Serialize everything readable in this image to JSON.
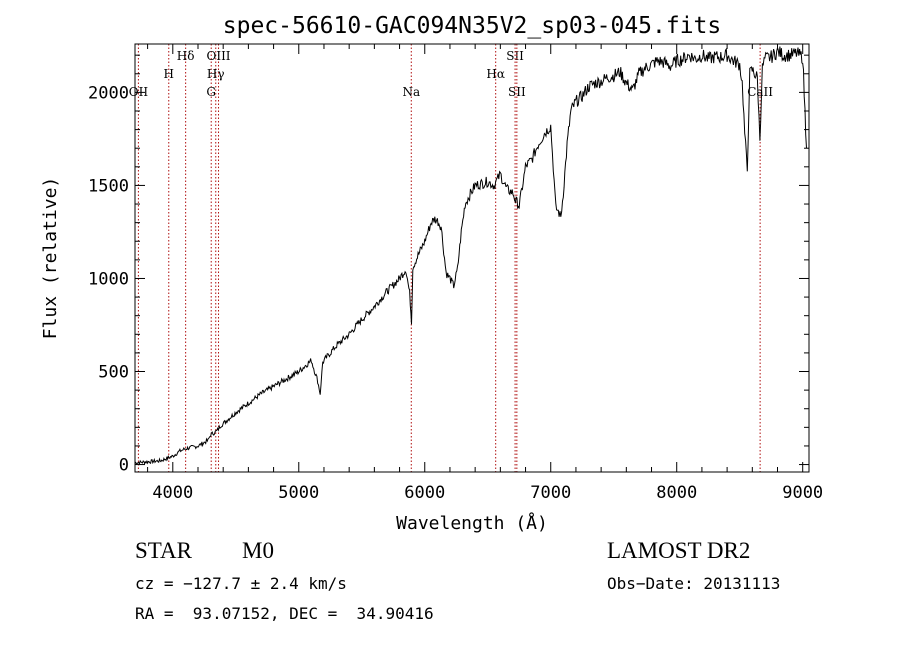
{
  "chart_data": {
    "type": "line",
    "title": "spec-56610-GAC094N35V2_sp03-045.fits",
    "xlabel": "Wavelength (Å)",
    "ylabel": "Flux (relative)",
    "xlim": [
      3700,
      9050
    ],
    "ylim": [
      -40,
      2260
    ],
    "xticks": [
      4000,
      5000,
      6000,
      7000,
      8000,
      9000
    ],
    "yticks": [
      0,
      500,
      1000,
      1500,
      2000
    ],
    "grid": false,
    "series": [
      {
        "x": [
          3700,
          3800,
          3900,
          4000,
          4050,
          4100,
          4200,
          4280,
          4300,
          4350,
          4380,
          4400,
          4500,
          4600,
          4700,
          4800,
          4900,
          5000,
          5100,
          5150,
          5170,
          5190,
          5250,
          5300,
          5400,
          5500,
          5600,
          5700,
          5800,
          5850,
          5880,
          5895,
          5905,
          5930,
          6000,
          6050,
          6080,
          6100,
          6130,
          6150,
          6170,
          6200,
          6230,
          6260,
          6290,
          6320,
          6350,
          6400,
          6450,
          6500,
          6550,
          6600,
          6650,
          6700,
          6720,
          6750,
          6800,
          6850,
          6900,
          6950,
          7000,
          7020,
          7040,
          7060,
          7080,
          7100,
          7130,
          7160,
          7200,
          7250,
          7300,
          7350,
          7400,
          7450,
          7500,
          7550,
          7600,
          7650,
          7700,
          7750,
          7800,
          7850,
          7900,
          7950,
          8000,
          8050,
          8100,
          8150,
          8200,
          8250,
          8300,
          8350,
          8400,
          8450,
          8500,
          8520,
          8540,
          8560,
          8580,
          8600,
          8640,
          8660,
          8680,
          8700,
          8750,
          8800,
          8850,
          8900,
          8950,
          9000,
          9030
        ],
        "y": [
          10,
          15,
          20,
          45,
          70,
          85,
          100,
          130,
          160,
          180,
          210,
          220,
          280,
          330,
          380,
          420,
          460,
          500,
          560,
          450,
          380,
          550,
          600,
          640,
          700,
          780,
          850,
          930,
          1000,
          1050,
          920,
          770,
          1060,
          1100,
          1200,
          1300,
          1320,
          1310,
          1280,
          1150,
          1030,
          1000,
          960,
          1050,
          1250,
          1400,
          1440,
          1500,
          1510,
          1520,
          1500,
          1560,
          1480,
          1460,
          1420,
          1390,
          1600,
          1640,
          1720,
          1780,
          1820,
          1600,
          1380,
          1360,
          1330,
          1460,
          1720,
          1900,
          1950,
          1980,
          2030,
          2050,
          2060,
          2080,
          2090,
          2110,
          2050,
          2010,
          2100,
          2130,
          2150,
          2170,
          2160,
          2140,
          2170,
          2180,
          2200,
          2180,
          2200,
          2180,
          2190,
          2190,
          2200,
          2170,
          2150,
          2050,
          1780,
          1580,
          2100,
          2120,
          2080,
          1750,
          2130,
          2180,
          2190,
          2220,
          2200,
          2200,
          2210,
          2190,
          1700
        ]
      }
    ],
    "line_markers": [
      {
        "label": "OII",
        "x": 3727
      },
      {
        "label": "H",
        "x": 3968
      },
      {
        "label": "Hδ",
        "x": 4102
      },
      {
        "label": "G",
        "x": 4305
      },
      {
        "label": "Hγ",
        "x": 4341
      },
      {
        "label": "OIII",
        "x": 4363
      },
      {
        "label": "Na",
        "x": 5893
      },
      {
        "label": "Hα",
        "x": 6563
      },
      {
        "label": "SII",
        "x": 6717
      },
      {
        "label": "SII",
        "x": 6731
      },
      {
        "label": "CaII",
        "x": 8662
      }
    ]
  },
  "info": {
    "object_class": "STAR",
    "subclass": "M0",
    "survey": "LAMOST DR2",
    "cz": "cz = −127.7 ± 2.4 km/s",
    "obs_date": "Obs−Date: 20131113",
    "radec": "RA =  93.07152, DEC =  34.90416"
  }
}
